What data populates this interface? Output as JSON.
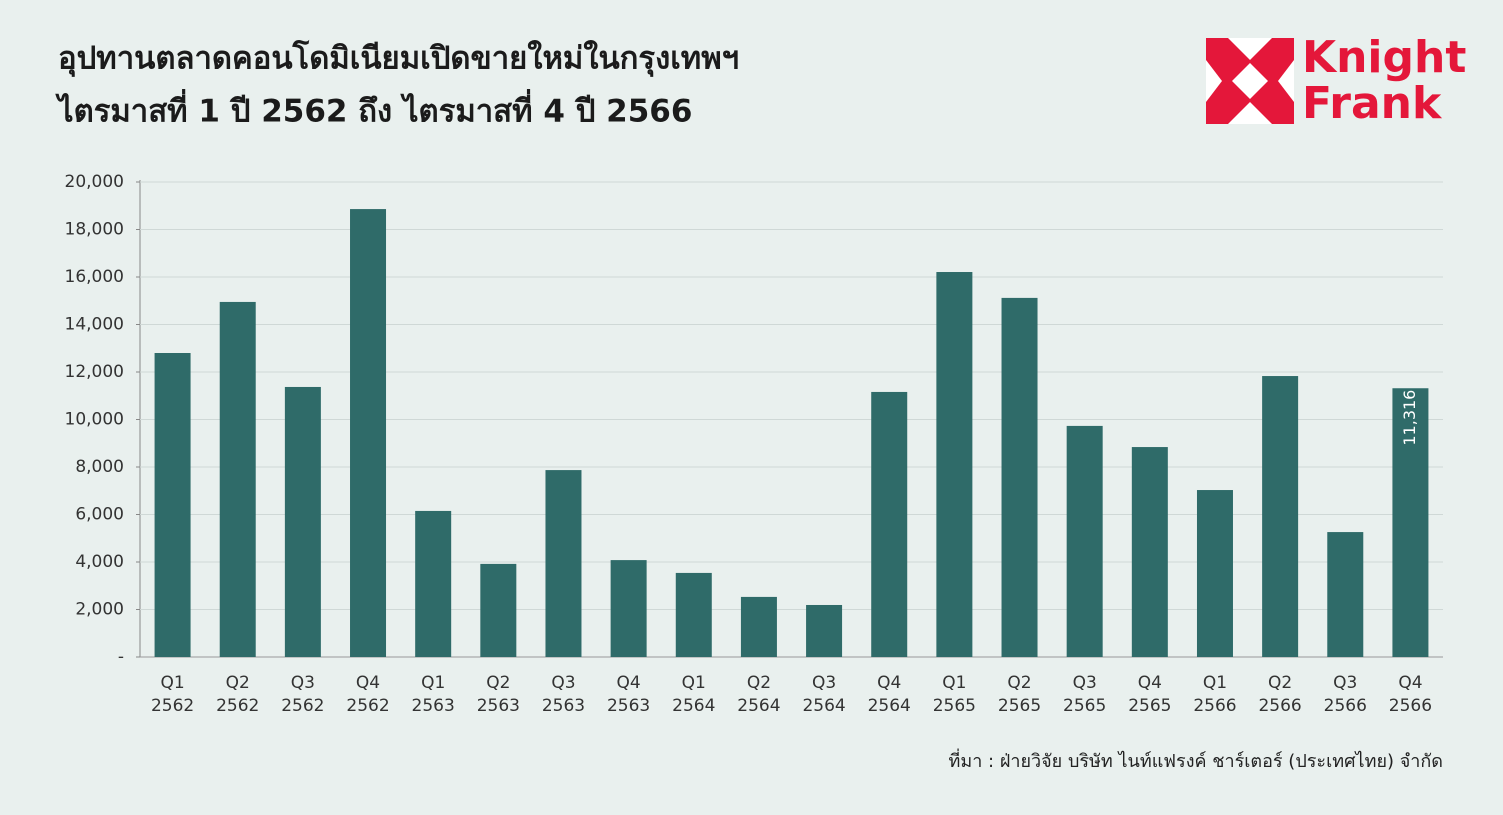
{
  "header": {
    "title_lines": [
      "อุปทานตลาดคอนโดมิเนียมเปิดขายใหม่ในกรุงเทพฯ",
      "ไตรมาสที่ 1 ปี 2562 ถึง ไตรมาสที่ 4 ปี 2566"
    ],
    "logo": [
      "Knight",
      "Frank"
    ]
  },
  "chart_data": {
    "type": "bar",
    "categories": [
      [
        "Q1",
        "2562"
      ],
      [
        "Q2",
        "2562"
      ],
      [
        "Q3",
        "2562"
      ],
      [
        "Q4",
        "2562"
      ],
      [
        "Q1",
        "2563"
      ],
      [
        "Q2",
        "2563"
      ],
      [
        "Q3",
        "2563"
      ],
      [
        "Q4",
        "2563"
      ],
      [
        "Q1",
        "2564"
      ],
      [
        "Q2",
        "2564"
      ],
      [
        "Q3",
        "2564"
      ],
      [
        "Q4",
        "2564"
      ],
      [
        "Q1",
        "2565"
      ],
      [
        "Q2",
        "2565"
      ],
      [
        "Q3",
        "2565"
      ],
      [
        "Q4",
        "2565"
      ],
      [
        "Q1",
        "2566"
      ],
      [
        "Q2",
        "2566"
      ],
      [
        "Q3",
        "2566"
      ],
      [
        "Q4",
        "2566"
      ]
    ],
    "values": [
      12800,
      14950,
      11370,
      18860,
      6150,
      3920,
      7870,
      4080,
      3540,
      2530,
      2190,
      11160,
      16210,
      15120,
      9730,
      8840,
      7030,
      11830,
      5260,
      11316
    ],
    "value_labels": [
      null,
      null,
      null,
      null,
      null,
      null,
      null,
      null,
      null,
      null,
      null,
      null,
      null,
      null,
      null,
      null,
      null,
      null,
      null,
      "11,316"
    ],
    "color": "#2f6b69",
    "ylim": [
      0,
      20000
    ],
    "yticks": [
      {
        "value": 0,
        "label": "-"
      },
      {
        "value": 2000,
        "label": "2,000"
      },
      {
        "value": 4000,
        "label": "4,000"
      },
      {
        "value": 6000,
        "label": "6,000"
      },
      {
        "value": 8000,
        "label": "8,000"
      },
      {
        "value": 10000,
        "label": "10,000"
      },
      {
        "value": 12000,
        "label": "12,000"
      },
      {
        "value": 14000,
        "label": "14,000"
      },
      {
        "value": 16000,
        "label": "16,000"
      },
      {
        "value": 18000,
        "label": "18,000"
      },
      {
        "value": 20000,
        "label": "20,000"
      }
    ],
    "grid": true,
    "source": "ที่มา : ฝ่ายวิจัย บริษัท ไนท์แฟรงค์ ชาร์เตอร์ (ประเทศไทย) จำกัด"
  }
}
